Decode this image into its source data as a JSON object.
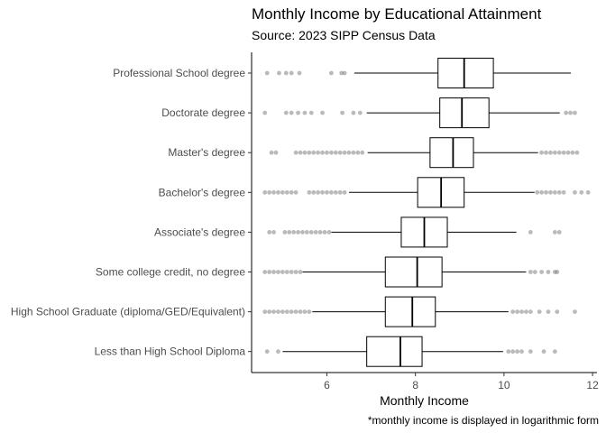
{
  "chart_data": {
    "type": "boxplot",
    "title": "Monthly Income by Educational Attainment",
    "subtitle": "Source: 2023 SIPP Census Data",
    "xlabel": "Monthly Income",
    "caption": "*monthly income is displayed in logarithmic form",
    "xlim": [
      4.3,
      12.1
    ],
    "xticks": [
      6,
      8,
      10,
      12
    ],
    "grid": false,
    "box_color": "#000000",
    "outlier_color": "#666666",
    "categories": [
      "Professional School degree",
      "Doctorate degree",
      "Master's degree",
      "Bachelor's degree",
      "Associate's degree",
      "Some college credit, no degree",
      "High School Graduate (diploma/GED/Equivalent)",
      "Less than High School Diploma"
    ],
    "boxes": [
      {
        "whisker_low": 6.62,
        "q1": 8.51,
        "median": 9.1,
        "q3": 9.76,
        "whisker_high": 11.51,
        "outliers": [
          4.65,
          4.92,
          5.08,
          5.2,
          5.38,
          6.1,
          6.33,
          6.4
        ]
      },
      {
        "whisker_low": 6.9,
        "q1": 8.55,
        "median": 9.05,
        "q3": 9.66,
        "whisker_high": 11.26,
        "outliers": [
          4.6,
          5.08,
          5.2,
          5.35,
          5.5,
          5.65,
          5.9,
          6.35,
          6.6,
          6.75,
          11.4,
          11.5,
          11.6
        ]
      },
      {
        "whisker_low": 6.92,
        "q1": 8.33,
        "median": 8.85,
        "q3": 9.31,
        "whisker_high": 10.77,
        "outliers": [
          4.75,
          4.85,
          5.3,
          5.4,
          5.5,
          5.6,
          5.7,
          5.8,
          5.9,
          6.0,
          6.1,
          6.2,
          6.3,
          6.4,
          6.5,
          6.6,
          6.7,
          6.8,
          10.85,
          10.95,
          11.05,
          11.15,
          11.25,
          11.35,
          11.45,
          11.55,
          11.65
        ]
      },
      {
        "whisker_low": 6.5,
        "q1": 8.05,
        "median": 8.58,
        "q3": 9.1,
        "whisker_high": 10.69,
        "outliers": [
          4.6,
          4.7,
          4.8,
          4.9,
          5.0,
          5.1,
          5.2,
          5.3,
          5.6,
          5.7,
          5.8,
          5.9,
          6.0,
          6.1,
          6.2,
          6.3,
          6.4,
          10.75,
          10.85,
          10.95,
          11.05,
          11.15,
          11.25,
          11.35,
          11.6,
          11.75,
          11.9
        ]
      },
      {
        "whisker_low": 6.1,
        "q1": 7.68,
        "median": 8.2,
        "q3": 8.72,
        "whisker_high": 10.28,
        "outliers": [
          4.7,
          4.8,
          5.05,
          5.15,
          5.25,
          5.35,
          5.45,
          5.55,
          5.65,
          5.75,
          5.85,
          5.95,
          6.05,
          10.6,
          11.15,
          11.25
        ]
      },
      {
        "whisker_low": 5.45,
        "q1": 7.32,
        "median": 8.04,
        "q3": 8.6,
        "whisker_high": 10.5,
        "outliers": [
          4.6,
          4.7,
          4.8,
          4.9,
          5.0,
          5.1,
          5.2,
          5.3,
          5.4,
          10.6,
          10.7,
          10.85,
          11.0,
          11.15,
          11.2
        ]
      },
      {
        "whisker_low": 5.67,
        "q1": 7.32,
        "median": 7.93,
        "q3": 8.45,
        "whisker_high": 10.1,
        "outliers": [
          4.6,
          4.7,
          4.8,
          4.9,
          5.0,
          5.1,
          5.2,
          5.3,
          5.4,
          5.5,
          5.6,
          10.2,
          10.3,
          10.4,
          10.5,
          10.6,
          10.8,
          11.0,
          11.2,
          11.6
        ]
      },
      {
        "whisker_low": 5.0,
        "q1": 6.9,
        "median": 7.66,
        "q3": 8.15,
        "whisker_high": 9.98,
        "outliers": [
          4.65,
          4.9,
          10.1,
          10.2,
          10.3,
          10.4,
          10.6,
          10.9,
          11.15
        ]
      }
    ]
  }
}
